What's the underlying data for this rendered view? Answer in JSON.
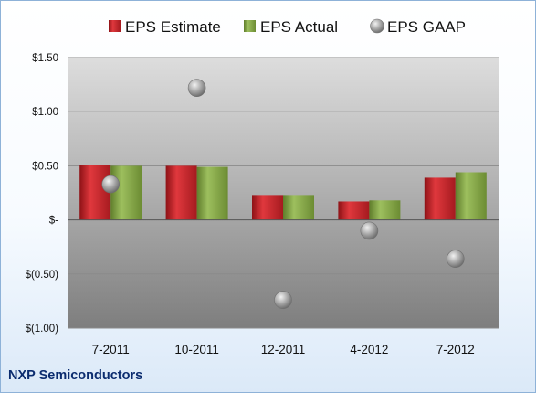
{
  "chart_data": {
    "type": "bar",
    "title": "",
    "xlabel": "",
    "ylabel": "",
    "categories": [
      "7-2011",
      "10-2011",
      "12-2011",
      "4-2012",
      "7-2012"
    ],
    "series": [
      {
        "name": "EPS Estimate",
        "kind": "bar",
        "color": "#c8262c",
        "values": [
          0.51,
          0.5,
          0.23,
          0.17,
          0.39
        ]
      },
      {
        "name": "EPS Actual",
        "kind": "bar",
        "color": "#86a84a",
        "values": [
          0.5,
          0.49,
          0.23,
          0.18,
          0.44
        ]
      },
      {
        "name": "EPS GAAP",
        "kind": "scatter",
        "color": "#a6a6a6",
        "values": [
          0.33,
          1.22,
          -0.74,
          -0.1,
          -0.36
        ]
      }
    ],
    "ylim": [
      -1.0,
      1.5
    ],
    "yticks": [
      {
        "value": 1.5,
        "label": "$1.50"
      },
      {
        "value": 1.0,
        "label": "$1.00"
      },
      {
        "value": 0.5,
        "label": "$0.50"
      },
      {
        "value": 0.0,
        "label": "$-"
      },
      {
        "value": -0.5,
        "label": "$(0.50)"
      },
      {
        "value": -1.0,
        "label": "$(1.00)"
      }
    ],
    "grid": true,
    "legend_position": "top"
  },
  "footer": {
    "company": "NXP Semiconductors"
  }
}
